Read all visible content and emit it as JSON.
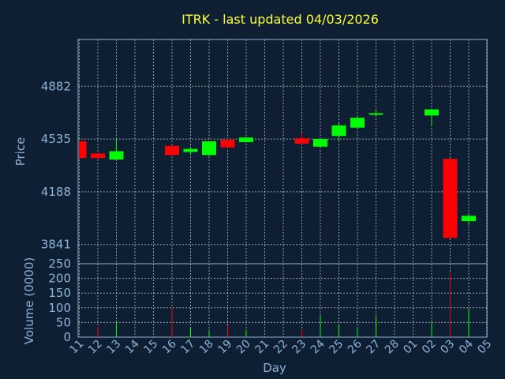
{
  "title": "ITRK - last updated 04/03/2026",
  "chart_data": {
    "type": "candlestick",
    "price_ylabel": "Price",
    "volume_ylabel": "Volume (0000)",
    "xlabel": "Day",
    "x_ticks": [
      "11",
      "12",
      "13",
      "14",
      "15",
      "16",
      "17",
      "18",
      "19",
      "20",
      "21",
      "22",
      "23",
      "24",
      "25",
      "26",
      "27",
      "28",
      "01",
      "02",
      "03",
      "04",
      "05"
    ],
    "price_ticks": [
      3841,
      4188,
      4535,
      4882
    ],
    "price_ylim": [
      3715,
      5190
    ],
    "volume_ticks": [
      0,
      50,
      100,
      150,
      200,
      250
    ],
    "volume_ylim": [
      0,
      250
    ],
    "grid": true,
    "colors": {
      "up": "#00ff00",
      "down": "#ff0000",
      "grid": "#c8c8c8",
      "axes": "#8fb3d6",
      "title": "#ffff33",
      "background": "#0f1f33"
    },
    "candles": [
      {
        "day": "11",
        "open": 4520,
        "close": 4410,
        "high": 4525,
        "low": 4405,
        "volume": 0
      },
      {
        "day": "12",
        "open": 4440,
        "close": 4410,
        "high": 4445,
        "low": 4400,
        "volume": 35
      },
      {
        "day": "13",
        "open": 4400,
        "close": 4455,
        "high": 4535,
        "low": 4395,
        "volume": 50
      },
      {
        "day": "16",
        "open": 4490,
        "close": 4430,
        "high": 4495,
        "low": 4425,
        "volume": 100
      },
      {
        "day": "17",
        "open": 4450,
        "close": 4470,
        "high": 4480,
        "low": 4430,
        "volume": 30
      },
      {
        "day": "18",
        "open": 4430,
        "close": 4520,
        "high": 4525,
        "low": 4425,
        "volume": 25
      },
      {
        "day": "19",
        "open": 4530,
        "close": 4480,
        "high": 4540,
        "low": 4475,
        "volume": 40
      },
      {
        "day": "20",
        "open": 4515,
        "close": 4545,
        "high": 4550,
        "low": 4510,
        "volume": 25
      },
      {
        "day": "23",
        "open": 4540,
        "close": 4505,
        "high": 4575,
        "low": 4500,
        "volume": 25
      },
      {
        "day": "24",
        "open": 4485,
        "close": 4535,
        "high": 4540,
        "low": 4480,
        "volume": 75
      },
      {
        "day": "25",
        "open": 4555,
        "close": 4625,
        "high": 4640,
        "low": 4525,
        "volume": 45
      },
      {
        "day": "26",
        "open": 4610,
        "close": 4675,
        "high": 4680,
        "low": 4600,
        "volume": 30
      },
      {
        "day": "27",
        "open": 4695,
        "close": 4705,
        "high": 4725,
        "low": 4685,
        "volume": 70
      },
      {
        "day": "02",
        "open": 4690,
        "close": 4730,
        "high": 4735,
        "low": 4620,
        "volume": 50
      },
      {
        "day": "03",
        "open": 4405,
        "close": 3885,
        "high": 4410,
        "low": 3880,
        "volume": 220
      },
      {
        "day": "04",
        "open": 3995,
        "close": 4030,
        "high": 4040,
        "low": 3970,
        "volume": 95
      }
    ]
  }
}
